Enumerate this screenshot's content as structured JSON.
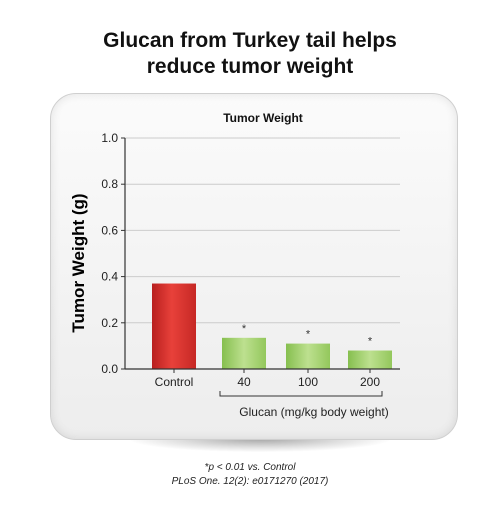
{
  "headline": {
    "line1": "Glucan from Turkey tail helps",
    "line2": "reduce tumor weight"
  },
  "chart_data": {
    "type": "bar",
    "title": "Tumor Weight",
    "ylabel": "Tumor Weight (g)",
    "xlabel": "",
    "ylim": [
      0,
      1.0
    ],
    "yticks": [
      "0.0",
      "0.2",
      "0.4",
      "0.6",
      "0.8",
      "1.0"
    ],
    "grid": true,
    "categories": [
      "Control",
      "40",
      "100",
      "200"
    ],
    "values": [
      0.37,
      0.135,
      0.11,
      0.08
    ],
    "significance": [
      "",
      "*",
      "*",
      "*"
    ],
    "group_label": "Glucan (mg/kg body weight)",
    "colors": {
      "control": "#d8302e",
      "treatment": "#9fcf66",
      "grid": "#cccccc",
      "axis": "#333333"
    }
  },
  "footnote": {
    "significance": "*p < 0.01 vs. Control",
    "citation": "PLoS One. 12(2): e0171270 (2017)"
  }
}
